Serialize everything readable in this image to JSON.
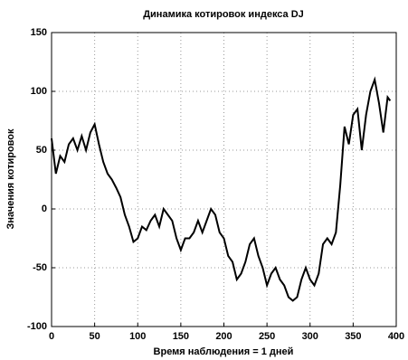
{
  "chart_data": {
    "type": "line",
    "title": "Динамика котировок индекса DJ",
    "x_label": "Время наблюдения = 1 дней",
    "y_label": "Значения котировок",
    "x": [
      0,
      5,
      10,
      15,
      20,
      25,
      30,
      35,
      40,
      45,
      50,
      55,
      60,
      65,
      70,
      75,
      80,
      85,
      90,
      95,
      100,
      105,
      110,
      115,
      120,
      125,
      130,
      135,
      140,
      145,
      150,
      155,
      160,
      165,
      170,
      175,
      180,
      185,
      190,
      195,
      200,
      205,
      210,
      215,
      220,
      225,
      230,
      235,
      240,
      245,
      250,
      255,
      260,
      265,
      270,
      275,
      280,
      285,
      290,
      295,
      300,
      305,
      310,
      315,
      320,
      325,
      330,
      335,
      340,
      345,
      350,
      355,
      360,
      365,
      370,
      375,
      380,
      385,
      390,
      393
    ],
    "values": [
      60,
      30,
      45,
      40,
      55,
      60,
      50,
      62,
      50,
      65,
      72,
      55,
      40,
      30,
      25,
      18,
      10,
      -5,
      -15,
      -28,
      -25,
      -15,
      -18,
      -10,
      -5,
      -15,
      0,
      -5,
      -10,
      -25,
      -35,
      -25,
      -25,
      -20,
      -10,
      -20,
      -10,
      0,
      -5,
      -20,
      -25,
      -40,
      -45,
      -60,
      -55,
      -45,
      -30,
      -25,
      -40,
      -50,
      -65,
      -55,
      -50,
      -60,
      -65,
      -75,
      -78,
      -75,
      -60,
      -50,
      -60,
      -65,
      -55,
      -30,
      -25,
      -30,
      -20,
      20,
      70,
      55,
      80,
      85,
      50,
      80,
      100,
      110,
      90,
      65,
      95,
      92
    ],
    "color": "#000000",
    "xlim": [
      0,
      400
    ],
    "ylim": [
      -100,
      150
    ],
    "xticks": [
      0,
      50,
      100,
      150,
      200,
      250,
      300,
      350,
      400
    ],
    "yticks": [
      -100,
      -50,
      0,
      50,
      100,
      150
    ],
    "grid": true
  }
}
